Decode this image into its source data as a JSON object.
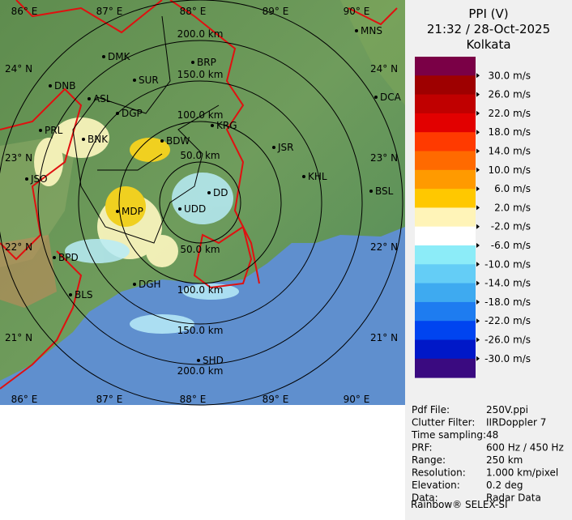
{
  "header": {
    "title": "PPI (V)",
    "time": "21:32 / 28-Oct-2025",
    "station": "Kolkata"
  },
  "legend": {
    "labels": [
      "30.0 m/s",
      "26.0 m/s",
      "22.0 m/s",
      "18.0 m/s",
      "14.0 m/s",
      "10.0 m/s",
      "6.0 m/s",
      "2.0 m/s",
      "-2.0 m/s",
      "-6.0 m/s",
      "-10.0 m/s",
      "-14.0 m/s",
      "-18.0 m/s",
      "-22.0 m/s",
      "-26.0 m/s",
      "-30.0 m/s"
    ],
    "colors": [
      "#7a0046",
      "#9e0000",
      "#c00000",
      "#e20000",
      "#ff3a00",
      "#ff6a00",
      "#ff9a00",
      "#ffc800",
      "#fff4b8",
      "#ffffff",
      "#8cecf8",
      "#64cdf6",
      "#3eaaf0",
      "#1e7cf0",
      "#0044f0",
      "#0018c8",
      "#3a0a80"
    ]
  },
  "info": [
    [
      "Pdf File:",
      "250V.ppi"
    ],
    [
      "Clutter Filter:",
      "IIRDoppler 7"
    ],
    [
      "Time sampling:",
      "48"
    ],
    [
      "PRF:",
      "600 Hz / 450 Hz"
    ],
    [
      "Range:",
      "250 km"
    ],
    [
      "Resolution:",
      "1.000 km/pixel"
    ],
    [
      "Elevation:",
      "0.2 deg"
    ],
    [
      "Data:",
      "Radar Data"
    ]
  ],
  "footer": "Rainbow® SELEX-SI",
  "map": {
    "lon_labels": [
      "86° E",
      "87° E",
      "88° E",
      "89° E",
      "90° E"
    ],
    "lat_labels": [
      "24° N",
      "23° N",
      "22° N",
      "21° N"
    ],
    "range_labels": [
      "50.0 km",
      "100.0 km",
      "150.0 km",
      "200.0 km"
    ],
    "cities": [
      "MNS",
      "DMK",
      "BRP",
      "SUR",
      "DNB",
      "ASL",
      "DCA",
      "DGP",
      "KRG",
      "PRL",
      "BNK",
      "BDW",
      "JSR",
      "KHL",
      "JSO",
      "BSL",
      "MDP",
      "UDD",
      "DD",
      "BPD",
      "DGH",
      "BLS",
      "SHD"
    ]
  }
}
